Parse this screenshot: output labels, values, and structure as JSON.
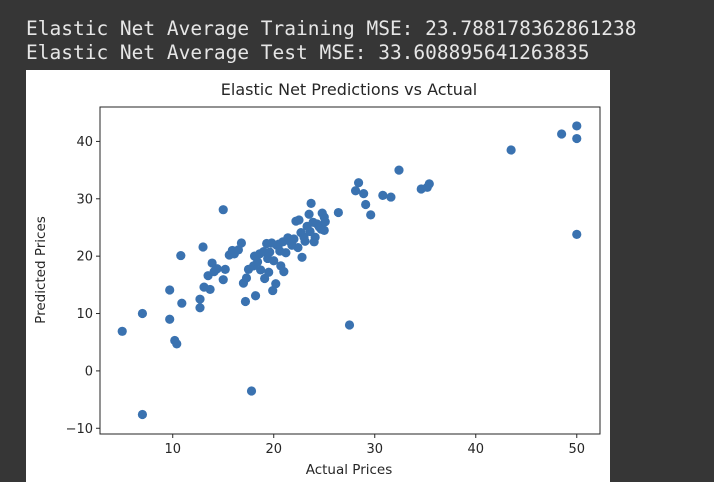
{
  "console": {
    "lines": [
      "Elastic Net Average Training MSE: 23.788178362861238",
      "Elastic Net Average Test MSE: 33.608895641263835"
    ]
  },
  "colors": {
    "background": "#363636",
    "console_text": "#e6e6e6",
    "figure_bg": "#ffffff",
    "point": "#3a72b0"
  },
  "chart_data": {
    "type": "scatter",
    "title": "Elastic Net Predictions vs Actual",
    "xlabel": "Actual Prices",
    "ylabel": "Predicted Prices",
    "xlim": [
      2.8,
      52.3
    ],
    "ylim": [
      -11.0,
      46.0
    ],
    "xticks": [
      10,
      20,
      30,
      40,
      50
    ],
    "yticks": [
      -10,
      0,
      10,
      20,
      30,
      40
    ],
    "grid": false,
    "points": [
      [
        5.0,
        6.9
      ],
      [
        7.0,
        10.0
      ],
      [
        7.0,
        -7.6
      ],
      [
        9.7,
        14.1
      ],
      [
        9.7,
        9.0
      ],
      [
        10.2,
        5.3
      ],
      [
        10.4,
        4.7
      ],
      [
        10.8,
        20.1
      ],
      [
        10.9,
        11.8
      ],
      [
        12.7,
        12.5
      ],
      [
        12.7,
        11.0
      ],
      [
        13.0,
        21.6
      ],
      [
        13.1,
        14.6
      ],
      [
        13.5,
        16.6
      ],
      [
        13.7,
        14.2
      ],
      [
        13.9,
        18.8
      ],
      [
        14.1,
        17.3
      ],
      [
        14.4,
        17.8
      ],
      [
        15.0,
        28.1
      ],
      [
        15.0,
        15.9
      ],
      [
        15.2,
        17.7
      ],
      [
        15.6,
        20.2
      ],
      [
        15.9,
        21.0
      ],
      [
        16.1,
        20.4
      ],
      [
        16.5,
        21.1
      ],
      [
        16.8,
        22.3
      ],
      [
        17.0,
        15.3
      ],
      [
        17.2,
        12.1
      ],
      [
        17.3,
        16.2
      ],
      [
        17.5,
        17.7
      ],
      [
        17.8,
        -3.5
      ],
      [
        18.0,
        18.3
      ],
      [
        18.1,
        20.0
      ],
      [
        18.2,
        13.1
      ],
      [
        18.4,
        19.0
      ],
      [
        18.6,
        20.4
      ],
      [
        18.7,
        17.6
      ],
      [
        19.0,
        20.8
      ],
      [
        19.1,
        16.1
      ],
      [
        19.3,
        22.2
      ],
      [
        19.4,
        19.6
      ],
      [
        19.5,
        17.2
      ],
      [
        19.6,
        20.7
      ],
      [
        19.8,
        22.3
      ],
      [
        19.9,
        14.0
      ],
      [
        20.0,
        19.2
      ],
      [
        20.2,
        15.2
      ],
      [
        20.3,
        21.9
      ],
      [
        20.5,
        22.1
      ],
      [
        20.6,
        20.9
      ],
      [
        20.7,
        18.3
      ],
      [
        20.9,
        22.5
      ],
      [
        21.0,
        17.3
      ],
      [
        21.2,
        20.6
      ],
      [
        21.4,
        23.2
      ],
      [
        21.6,
        22.6
      ],
      [
        21.8,
        21.9
      ],
      [
        22.0,
        23.0
      ],
      [
        22.2,
        26.1
      ],
      [
        22.4,
        21.5
      ],
      [
        22.5,
        26.3
      ],
      [
        22.7,
        24.1
      ],
      [
        22.8,
        19.8
      ],
      [
        23.0,
        23.3
      ],
      [
        23.1,
        22.6
      ],
      [
        23.3,
        25.2
      ],
      [
        23.5,
        27.3
      ],
      [
        23.6,
        24.3
      ],
      [
        23.7,
        29.2
      ],
      [
        23.9,
        25.9
      ],
      [
        24.0,
        22.5
      ],
      [
        24.1,
        23.3
      ],
      [
        24.3,
        25.6
      ],
      [
        24.5,
        25.1
      ],
      [
        24.7,
        24.7
      ],
      [
        24.8,
        27.5
      ],
      [
        25.0,
        26.8
      ],
      [
        25.0,
        24.5
      ],
      [
        25.1,
        26.0
      ],
      [
        26.4,
        27.6
      ],
      [
        27.5,
        8.0
      ],
      [
        28.1,
        31.4
      ],
      [
        28.4,
        32.8
      ],
      [
        28.9,
        30.9
      ],
      [
        29.1,
        29.0
      ],
      [
        29.6,
        27.2
      ],
      [
        30.8,
        30.6
      ],
      [
        31.6,
        30.3
      ],
      [
        32.4,
        35.0
      ],
      [
        34.6,
        31.7
      ],
      [
        35.2,
        32.0
      ],
      [
        35.4,
        32.6
      ],
      [
        43.5,
        38.5
      ],
      [
        48.5,
        41.3
      ],
      [
        50.0,
        42.7
      ],
      [
        50.0,
        40.5
      ],
      [
        50.0,
        23.8
      ]
    ]
  }
}
